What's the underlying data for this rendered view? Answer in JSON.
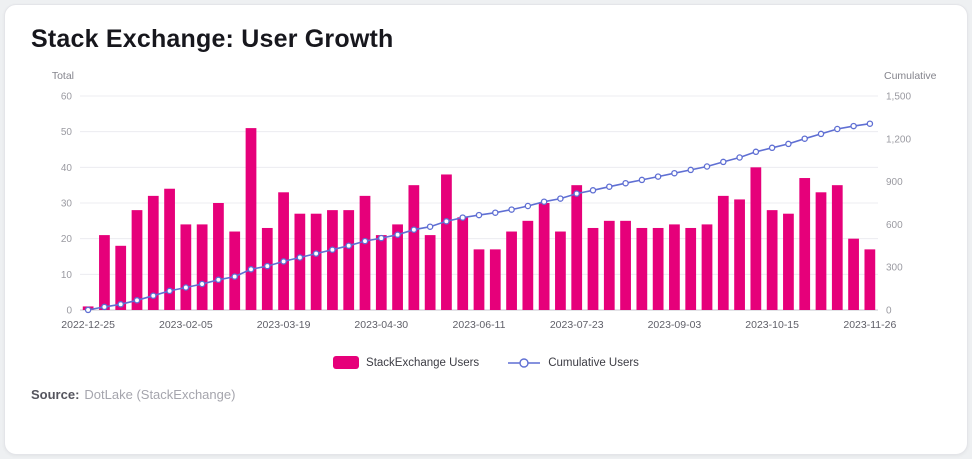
{
  "header": {
    "title": "Stack Exchange: User Growth"
  },
  "footer": {
    "source_label": "Source:",
    "source_value": "DotLake (StackExchange)"
  },
  "chart_data": {
    "type": "bar",
    "title": "Stack Exchange: User Growth",
    "grid": true,
    "legend_position": "bottom",
    "left_axis": {
      "label": "Total",
      "min": 0,
      "max": 60,
      "ticks": [
        0,
        10,
        20,
        30,
        40,
        50,
        60
      ]
    },
    "right_axis": {
      "label": "Cumulative",
      "min": 0,
      "max": 1500,
      "ticks": [
        0,
        300,
        600,
        900,
        1200,
        1500
      ],
      "tick_labels": [
        "0",
        "300",
        "600",
        "900",
        "1,200",
        "1,500"
      ]
    },
    "x_tick_labels": [
      "2022-12-25",
      "2023-02-05",
      "2023-03-19",
      "2023-04-30",
      "2023-06-11",
      "2023-07-23",
      "2023-09-03",
      "2023-10-15",
      "2023-11-26"
    ],
    "categories": [
      "2022-12-25",
      "2023-01-01",
      "2023-01-08",
      "2023-01-15",
      "2023-01-22",
      "2023-01-29",
      "2023-02-05",
      "2023-02-12",
      "2023-02-19",
      "2023-02-26",
      "2023-03-05",
      "2023-03-12",
      "2023-03-19",
      "2023-03-26",
      "2023-04-02",
      "2023-04-09",
      "2023-04-16",
      "2023-04-23",
      "2023-04-30",
      "2023-05-07",
      "2023-05-14",
      "2023-05-21",
      "2023-05-28",
      "2023-06-04",
      "2023-06-11",
      "2023-06-18",
      "2023-06-25",
      "2023-07-02",
      "2023-07-09",
      "2023-07-16",
      "2023-07-23",
      "2023-07-30",
      "2023-08-06",
      "2023-08-13",
      "2023-08-20",
      "2023-08-27",
      "2023-09-03",
      "2023-09-10",
      "2023-09-17",
      "2023-09-24",
      "2023-10-01",
      "2023-10-08",
      "2023-10-15",
      "2023-10-22",
      "2023-10-29",
      "2023-11-05",
      "2023-11-12",
      "2023-11-19",
      "2023-11-26"
    ],
    "series": [
      {
        "name": "StackExchange Users",
        "type": "bar",
        "axis": "left",
        "color": "#E6007A",
        "values": [
          1,
          21,
          18,
          28,
          32,
          34,
          24,
          24,
          30,
          22,
          51,
          23,
          33,
          27,
          27,
          28,
          28,
          32,
          21,
          24,
          35,
          21,
          38,
          26,
          17,
          17,
          22,
          25,
          30,
          22,
          35,
          23,
          25,
          25,
          23,
          23,
          24,
          23,
          24,
          32,
          31,
          40,
          28,
          27,
          37,
          33,
          35,
          20,
          17
        ]
      },
      {
        "name": "Cumulative Users",
        "type": "line",
        "axis": "right",
        "color": "#5F6FD3",
        "marker": "open-circle",
        "values": [
          1,
          22,
          40,
          68,
          100,
          134,
          158,
          182,
          212,
          234,
          285,
          308,
          341,
          368,
          395,
          423,
          451,
          483,
          504,
          528,
          563,
          584,
          622,
          648,
          665,
          682,
          704,
          729,
          759,
          781,
          816,
          839,
          864,
          889,
          912,
          935,
          959,
          982,
          1006,
          1038,
          1069,
          1109,
          1137,
          1164,
          1201,
          1234,
          1269,
          1289,
          1306
        ]
      }
    ]
  }
}
